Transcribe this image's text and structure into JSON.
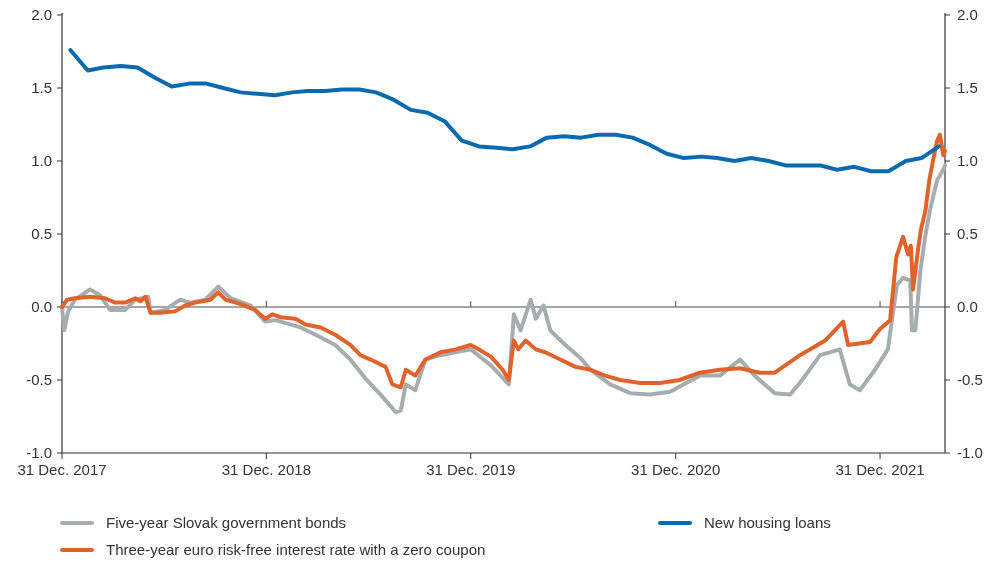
{
  "chart_data": {
    "type": "line",
    "xlim": [
      "2017-12-31",
      "2022-04-26"
    ],
    "xticks": [
      {
        "value": "2017-12-31",
        "label": "31 Dec. 2017"
      },
      {
        "value": "2018-12-31",
        "label": "31 Dec. 2018"
      },
      {
        "value": "2019-12-31",
        "label": "31 Dec. 2019"
      },
      {
        "value": "2020-12-31",
        "label": "31 Dec. 2020"
      },
      {
        "value": "2021-12-31",
        "label": "31 Dec. 2021"
      }
    ],
    "ylim": [
      -1,
      2
    ],
    "yticks": [
      {
        "value": -1,
        "label": "-1.0"
      },
      {
        "value": -0.5,
        "label": "-0.5"
      },
      {
        "value": 0,
        "label": "0.0"
      },
      {
        "value": 0.5,
        "label": "0.5"
      },
      {
        "value": 1,
        "label": "1.0"
      },
      {
        "value": 1.5,
        "label": "1.5"
      },
      {
        "value": 2,
        "label": "2.0"
      }
    ],
    "y2lim": [
      -1,
      2
    ],
    "y2ticks": [
      {
        "value": -1,
        "label": "-1.0"
      },
      {
        "value": -0.5,
        "label": "-0.5"
      },
      {
        "value": 0,
        "label": "0.0"
      },
      {
        "value": 0.5,
        "label": "0.5"
      },
      {
        "value": 1,
        "label": "1.0"
      },
      {
        "value": 1.5,
        "label": "1.5"
      },
      {
        "value": 2,
        "label": "2.0"
      }
    ],
    "ref_lines": [
      {
        "axis": "y",
        "value": 0,
        "color": "#4d4d4d"
      }
    ],
    "legend": "bottom",
    "series": [
      {
        "name": "Five-year Slovak government bonds",
        "color": "#a6adb1",
        "x": [
          "2017-12-31",
          "2018-01-04",
          "2018-01-11",
          "2018-01-23",
          "2018-02-19",
          "2018-03-09",
          "2018-03-27",
          "2018-04-23",
          "2018-05-11",
          "2018-06-03",
          "2018-06-07",
          "2018-07-03",
          "2018-07-30",
          "2018-08-17",
          "2018-09-13",
          "2018-10-06",
          "2018-10-28",
          "2018-12-03",
          "2018-12-29",
          "2019-01-16",
          "2019-03-02",
          "2019-03-29",
          "2019-05-03",
          "2019-05-30",
          "2019-06-26",
          "2019-07-23",
          "2019-08-19",
          "2019-08-28",
          "2019-09-06",
          "2019-09-23",
          "2019-10-11",
          "2019-11-07",
          "2019-12-04",
          "2019-12-31",
          "2020-02-05",
          "2020-03-08",
          "2020-03-17",
          "2020-03-29",
          "2020-04-16",
          "2020-04-25",
          "2020-05-09",
          "2020-05-21",
          "2020-06-17",
          "2020-07-14",
          "2020-08-01",
          "2020-09-05",
          "2020-10-11",
          "2020-11-15",
          "2020-12-21",
          "2021-02-12",
          "2021-03-20",
          "2021-04-25",
          "2021-05-21",
          "2021-06-26",
          "2021-07-23",
          "2021-08-10",
          "2021-09-15",
          "2021-10-20",
          "2021-11-07",
          "2021-11-25",
          "2021-12-22",
          "2022-01-14",
          "2022-01-30",
          "2022-02-10",
          "2022-02-23",
          "2022-02-26",
          "2022-03-04",
          "2022-03-13",
          "2022-03-22",
          "2022-03-30",
          "2022-04-12",
          "2022-04-23",
          "2022-04-26"
        ],
        "values": [
          0.0,
          -0.16,
          -0.03,
          0.05,
          0.12,
          0.08,
          -0.02,
          -0.02,
          0.05,
          0.07,
          -0.04,
          -0.02,
          0.05,
          0.03,
          0.05,
          0.14,
          0.06,
          0.01,
          -0.1,
          -0.09,
          -0.14,
          -0.19,
          -0.26,
          -0.36,
          -0.49,
          -0.6,
          -0.72,
          -0.71,
          -0.53,
          -0.57,
          -0.36,
          -0.33,
          -0.31,
          -0.29,
          -0.4,
          -0.53,
          -0.05,
          -0.16,
          0.05,
          -0.08,
          0.01,
          -0.16,
          -0.26,
          -0.35,
          -0.43,
          -0.53,
          -0.59,
          -0.6,
          -0.58,
          -0.47,
          -0.47,
          -0.36,
          -0.47,
          -0.59,
          -0.6,
          -0.52,
          -0.33,
          -0.29,
          -0.53,
          -0.57,
          -0.43,
          -0.29,
          0.15,
          0.2,
          0.18,
          -0.16,
          -0.16,
          0.25,
          0.49,
          0.66,
          0.87,
          0.94,
          0.97
        ]
      },
      {
        "name": "Three-year euro risk-free interest rate with a zero coupon",
        "color": "#e0632b",
        "x": [
          "2017-12-31",
          "2018-01-09",
          "2018-01-23",
          "2018-02-19",
          "2018-03-18",
          "2018-04-05",
          "2018-04-23",
          "2018-05-11",
          "2018-05-20",
          "2018-05-29",
          "2018-06-03",
          "2018-06-07",
          "2018-06-24",
          "2018-07-21",
          "2018-08-08",
          "2018-08-26",
          "2018-09-22",
          "2018-10-06",
          "2018-10-19",
          "2018-11-15",
          "2018-12-11",
          "2018-12-29",
          "2019-01-11",
          "2019-01-25",
          "2019-02-21",
          "2019-03-11",
          "2019-04-07",
          "2019-05-03",
          "2019-05-30",
          "2019-06-17",
          "2019-07-05",
          "2019-08-01",
          "2019-08-13",
          "2019-08-28",
          "2019-09-06",
          "2019-09-23",
          "2019-10-11",
          "2019-11-07",
          "2019-12-04",
          "2019-12-31",
          "2020-01-14",
          "2020-02-05",
          "2020-02-26",
          "2020-03-08",
          "2020-03-17",
          "2020-03-25",
          "2020-04-07",
          "2020-04-25",
          "2020-05-12",
          "2020-06-08",
          "2020-07-05",
          "2020-08-01",
          "2020-08-27",
          "2020-09-23",
          "2020-10-29",
          "2020-12-03",
          "2021-01-07",
          "2021-02-12",
          "2021-03-20",
          "2021-04-25",
          "2021-05-30",
          "2021-06-26",
          "2021-08-10",
          "2021-09-24",
          "2021-10-26",
          "2021-11-04",
          "2021-12-13",
          "2021-12-31",
          "2022-01-18",
          "2022-01-29",
          "2022-02-10",
          "2022-02-19",
          "2022-02-24",
          "2022-02-28",
          "2022-03-09",
          "2022-03-14",
          "2022-03-22",
          "2022-03-29",
          "2022-04-05",
          "2022-04-12",
          "2022-04-17",
          "2022-04-23",
          "2022-04-26"
        ],
        "values": [
          0.0,
          0.05,
          0.06,
          0.07,
          0.06,
          0.03,
          0.03,
          0.06,
          0.04,
          0.07,
          0.01,
          -0.04,
          -0.04,
          -0.03,
          0.01,
          0.03,
          0.05,
          0.1,
          0.05,
          0.02,
          -0.02,
          -0.08,
          -0.05,
          -0.07,
          -0.08,
          -0.12,
          -0.14,
          -0.19,
          -0.26,
          -0.33,
          -0.36,
          -0.41,
          -0.53,
          -0.55,
          -0.43,
          -0.47,
          -0.36,
          -0.31,
          -0.29,
          -0.26,
          -0.29,
          -0.34,
          -0.43,
          -0.5,
          -0.23,
          -0.29,
          -0.23,
          -0.29,
          -0.31,
          -0.36,
          -0.41,
          -0.43,
          -0.47,
          -0.5,
          -0.52,
          -0.52,
          -0.5,
          -0.45,
          -0.43,
          -0.42,
          -0.45,
          -0.45,
          -0.33,
          -0.23,
          -0.1,
          -0.26,
          -0.24,
          -0.15,
          -0.09,
          0.34,
          0.48,
          0.36,
          0.42,
          0.12,
          0.4,
          0.53,
          0.66,
          0.87,
          1.01,
          1.14,
          1.18,
          1.04,
          1.07
        ]
      },
      {
        "name": "New housing loans",
        "color": "#0a6ab0",
        "x": [
          "2018-01-15",
          "2018-02-15",
          "2018-03-15",
          "2018-04-15",
          "2018-05-15",
          "2018-06-15",
          "2018-07-15",
          "2018-08-15",
          "2018-09-15",
          "2018-10-15",
          "2018-11-15",
          "2018-12-15",
          "2019-01-15",
          "2019-02-15",
          "2019-03-15",
          "2019-04-15",
          "2019-05-15",
          "2019-06-15",
          "2019-07-15",
          "2019-08-15",
          "2019-09-15",
          "2019-10-15",
          "2019-11-15",
          "2019-12-15",
          "2020-01-15",
          "2020-02-15",
          "2020-03-15",
          "2020-04-15",
          "2020-05-15",
          "2020-06-15",
          "2020-07-15",
          "2020-08-15",
          "2020-09-15",
          "2020-10-15",
          "2020-11-15",
          "2020-12-15",
          "2021-01-15",
          "2021-02-15",
          "2021-03-15",
          "2021-04-15",
          "2021-05-15",
          "2021-06-15",
          "2021-07-15",
          "2021-08-15",
          "2021-09-15",
          "2021-10-15",
          "2021-11-15",
          "2021-12-15",
          "2022-01-15",
          "2022-02-15",
          "2022-03-15",
          "2022-04-15"
        ],
        "values": [
          1.76,
          1.62,
          1.64,
          1.65,
          1.64,
          1.57,
          1.51,
          1.53,
          1.53,
          1.5,
          1.47,
          1.46,
          1.45,
          1.47,
          1.48,
          1.48,
          1.49,
          1.49,
          1.47,
          1.42,
          1.35,
          1.33,
          1.27,
          1.14,
          1.1,
          1.09,
          1.08,
          1.1,
          1.16,
          1.17,
          1.16,
          1.18,
          1.18,
          1.16,
          1.11,
          1.05,
          1.02,
          1.03,
          1.02,
          1.0,
          1.02,
          1.0,
          0.97,
          0.97,
          0.97,
          0.94,
          0.96,
          0.93,
          0.93,
          1.0,
          1.02,
          1.1
        ]
      }
    ]
  }
}
